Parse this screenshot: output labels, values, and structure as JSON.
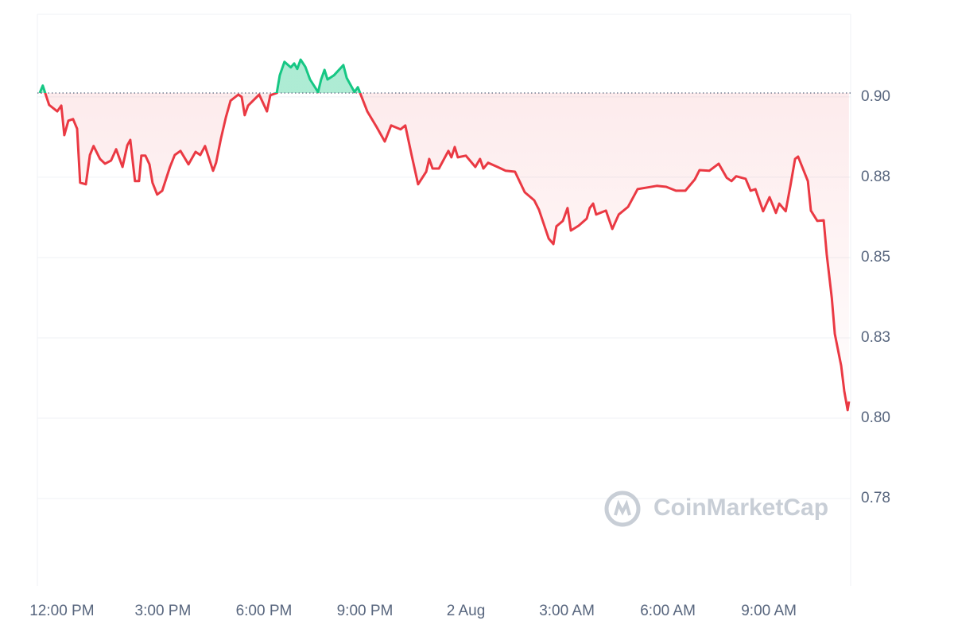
{
  "chart_data": {
    "type": "line",
    "watermark": "CoinMarketCap",
    "reference_line": 0.9012,
    "colors": {
      "up": "#16c784",
      "down": "#ea3943"
    },
    "xlim": [
      -0.73,
      23.43
    ],
    "ylim": [
      0.7478,
      0.9257
    ],
    "xticks": [
      {
        "value": 0,
        "label": "12:00 PM"
      },
      {
        "value": 3,
        "label": "3:00 PM"
      },
      {
        "value": 6,
        "label": "6:00 PM"
      },
      {
        "value": 9,
        "label": "9:00 PM"
      },
      {
        "value": 12,
        "label": "2 Aug"
      },
      {
        "value": 15,
        "label": "3:00 AM"
      },
      {
        "value": 18,
        "label": "6:00 AM"
      },
      {
        "value": 21,
        "label": "9:00 AM"
      }
    ],
    "yticks": [
      {
        "value": 0.775,
        "label": "0.78"
      },
      {
        "value": 0.8,
        "label": "0.80"
      },
      {
        "value": 0.825,
        "label": "0.83"
      },
      {
        "value": 0.85,
        "label": "0.85"
      },
      {
        "value": 0.875,
        "label": "0.88"
      },
      {
        "value": 0.9,
        "label": "0.90"
      }
    ],
    "grid": true,
    "x": [
      -0.66,
      -0.57,
      -0.38,
      -0.14,
      -0.02,
      0.07,
      0.19,
      0.33,
      0.45,
      0.54,
      0.71,
      0.83,
      0.94,
      1.13,
      1.28,
      1.46,
      1.61,
      1.8,
      1.94,
      2.03,
      2.17,
      2.29,
      2.36,
      2.48,
      2.6,
      2.69,
      2.83,
      2.98,
      3.21,
      3.35,
      3.52,
      3.76,
      3.97,
      4.11,
      4.25,
      4.49,
      4.58,
      4.72,
      4.87,
      5.01,
      5.24,
      5.34,
      5.43,
      5.53,
      5.86,
      6.09,
      6.19,
      6.38,
      6.47,
      6.61,
      6.8,
      6.9,
      6.99,
      7.09,
      7.23,
      7.37,
      7.61,
      7.7,
      7.8,
      7.89,
      8.08,
      8.36,
      8.46,
      8.69,
      8.79,
      9.07,
      9.35,
      9.59,
      9.78,
      10.06,
      10.2,
      10.39,
      10.58,
      10.82,
      10.91,
      11.01,
      11.2,
      11.48,
      11.57,
      11.67,
      11.76,
      12.0,
      12.28,
      12.42,
      12.52,
      12.66,
      12.94,
      13.18,
      13.46,
      13.75,
      14.03,
      14.17,
      14.46,
      14.6,
      14.69,
      14.88,
      15.02,
      15.12,
      15.35,
      15.59,
      15.68,
      15.78,
      15.87,
      16.16,
      16.35,
      16.54,
      16.82,
      17.1,
      17.39,
      17.67,
      17.95,
      18.24,
      18.52,
      18.8,
      18.94,
      19.23,
      19.51,
      19.75,
      19.89,
      20.03,
      20.31,
      20.46,
      20.6,
      20.83,
      21.02,
      21.21,
      21.31,
      21.5,
      21.64,
      21.78,
      21.87,
      22.16,
      22.25,
      22.44,
      22.63,
      22.72,
      22.87,
      22.96,
      23.15,
      23.24,
      23.34,
      23.38
    ],
    "values": [
      0.9012,
      0.9035,
      0.8975,
      0.8955,
      0.8973,
      0.8881,
      0.8926,
      0.8931,
      0.8901,
      0.8733,
      0.8728,
      0.8819,
      0.8847,
      0.8807,
      0.8792,
      0.8802,
      0.8837,
      0.8782,
      0.8849,
      0.8866,
      0.8738,
      0.8738,
      0.8817,
      0.8817,
      0.879,
      0.8733,
      0.8696,
      0.8708,
      0.8782,
      0.8819,
      0.8832,
      0.879,
      0.8829,
      0.8819,
      0.8847,
      0.877,
      0.8795,
      0.8869,
      0.8936,
      0.8988,
      0.9007,
      0.9,
      0.8943,
      0.8973,
      0.9007,
      0.8955,
      0.9005,
      0.9012,
      0.9067,
      0.9109,
      0.9092,
      0.9104,
      0.9087,
      0.9116,
      0.9094,
      0.9054,
      0.9015,
      0.9054,
      0.9084,
      0.9054,
      0.9067,
      0.9099,
      0.9059,
      0.9015,
      0.903,
      0.8955,
      0.8906,
      0.8861,
      0.8911,
      0.8899,
      0.8911,
      0.8817,
      0.8728,
      0.8767,
      0.8807,
      0.8777,
      0.8777,
      0.8832,
      0.8812,
      0.8844,
      0.8812,
      0.8817,
      0.8782,
      0.8807,
      0.8777,
      0.8795,
      0.8782,
      0.877,
      0.8767,
      0.8703,
      0.8678,
      0.8649,
      0.8559,
      0.8542,
      0.8597,
      0.8614,
      0.8654,
      0.8584,
      0.8599,
      0.8621,
      0.8654,
      0.8668,
      0.8634,
      0.8646,
      0.8589,
      0.8634,
      0.8658,
      0.8713,
      0.8718,
      0.8723,
      0.872,
      0.8708,
      0.8708,
      0.8743,
      0.8772,
      0.877,
      0.8792,
      0.8748,
      0.8738,
      0.8753,
      0.8745,
      0.8708,
      0.8713,
      0.8644,
      0.8688,
      0.8639,
      0.8668,
      0.8644,
      0.8723,
      0.8807,
      0.8814,
      0.8738,
      0.8646,
      0.8614,
      0.8616,
      0.851,
      0.8374,
      0.8262,
      0.8163,
      0.8084,
      0.8025,
      0.8052
    ]
  }
}
